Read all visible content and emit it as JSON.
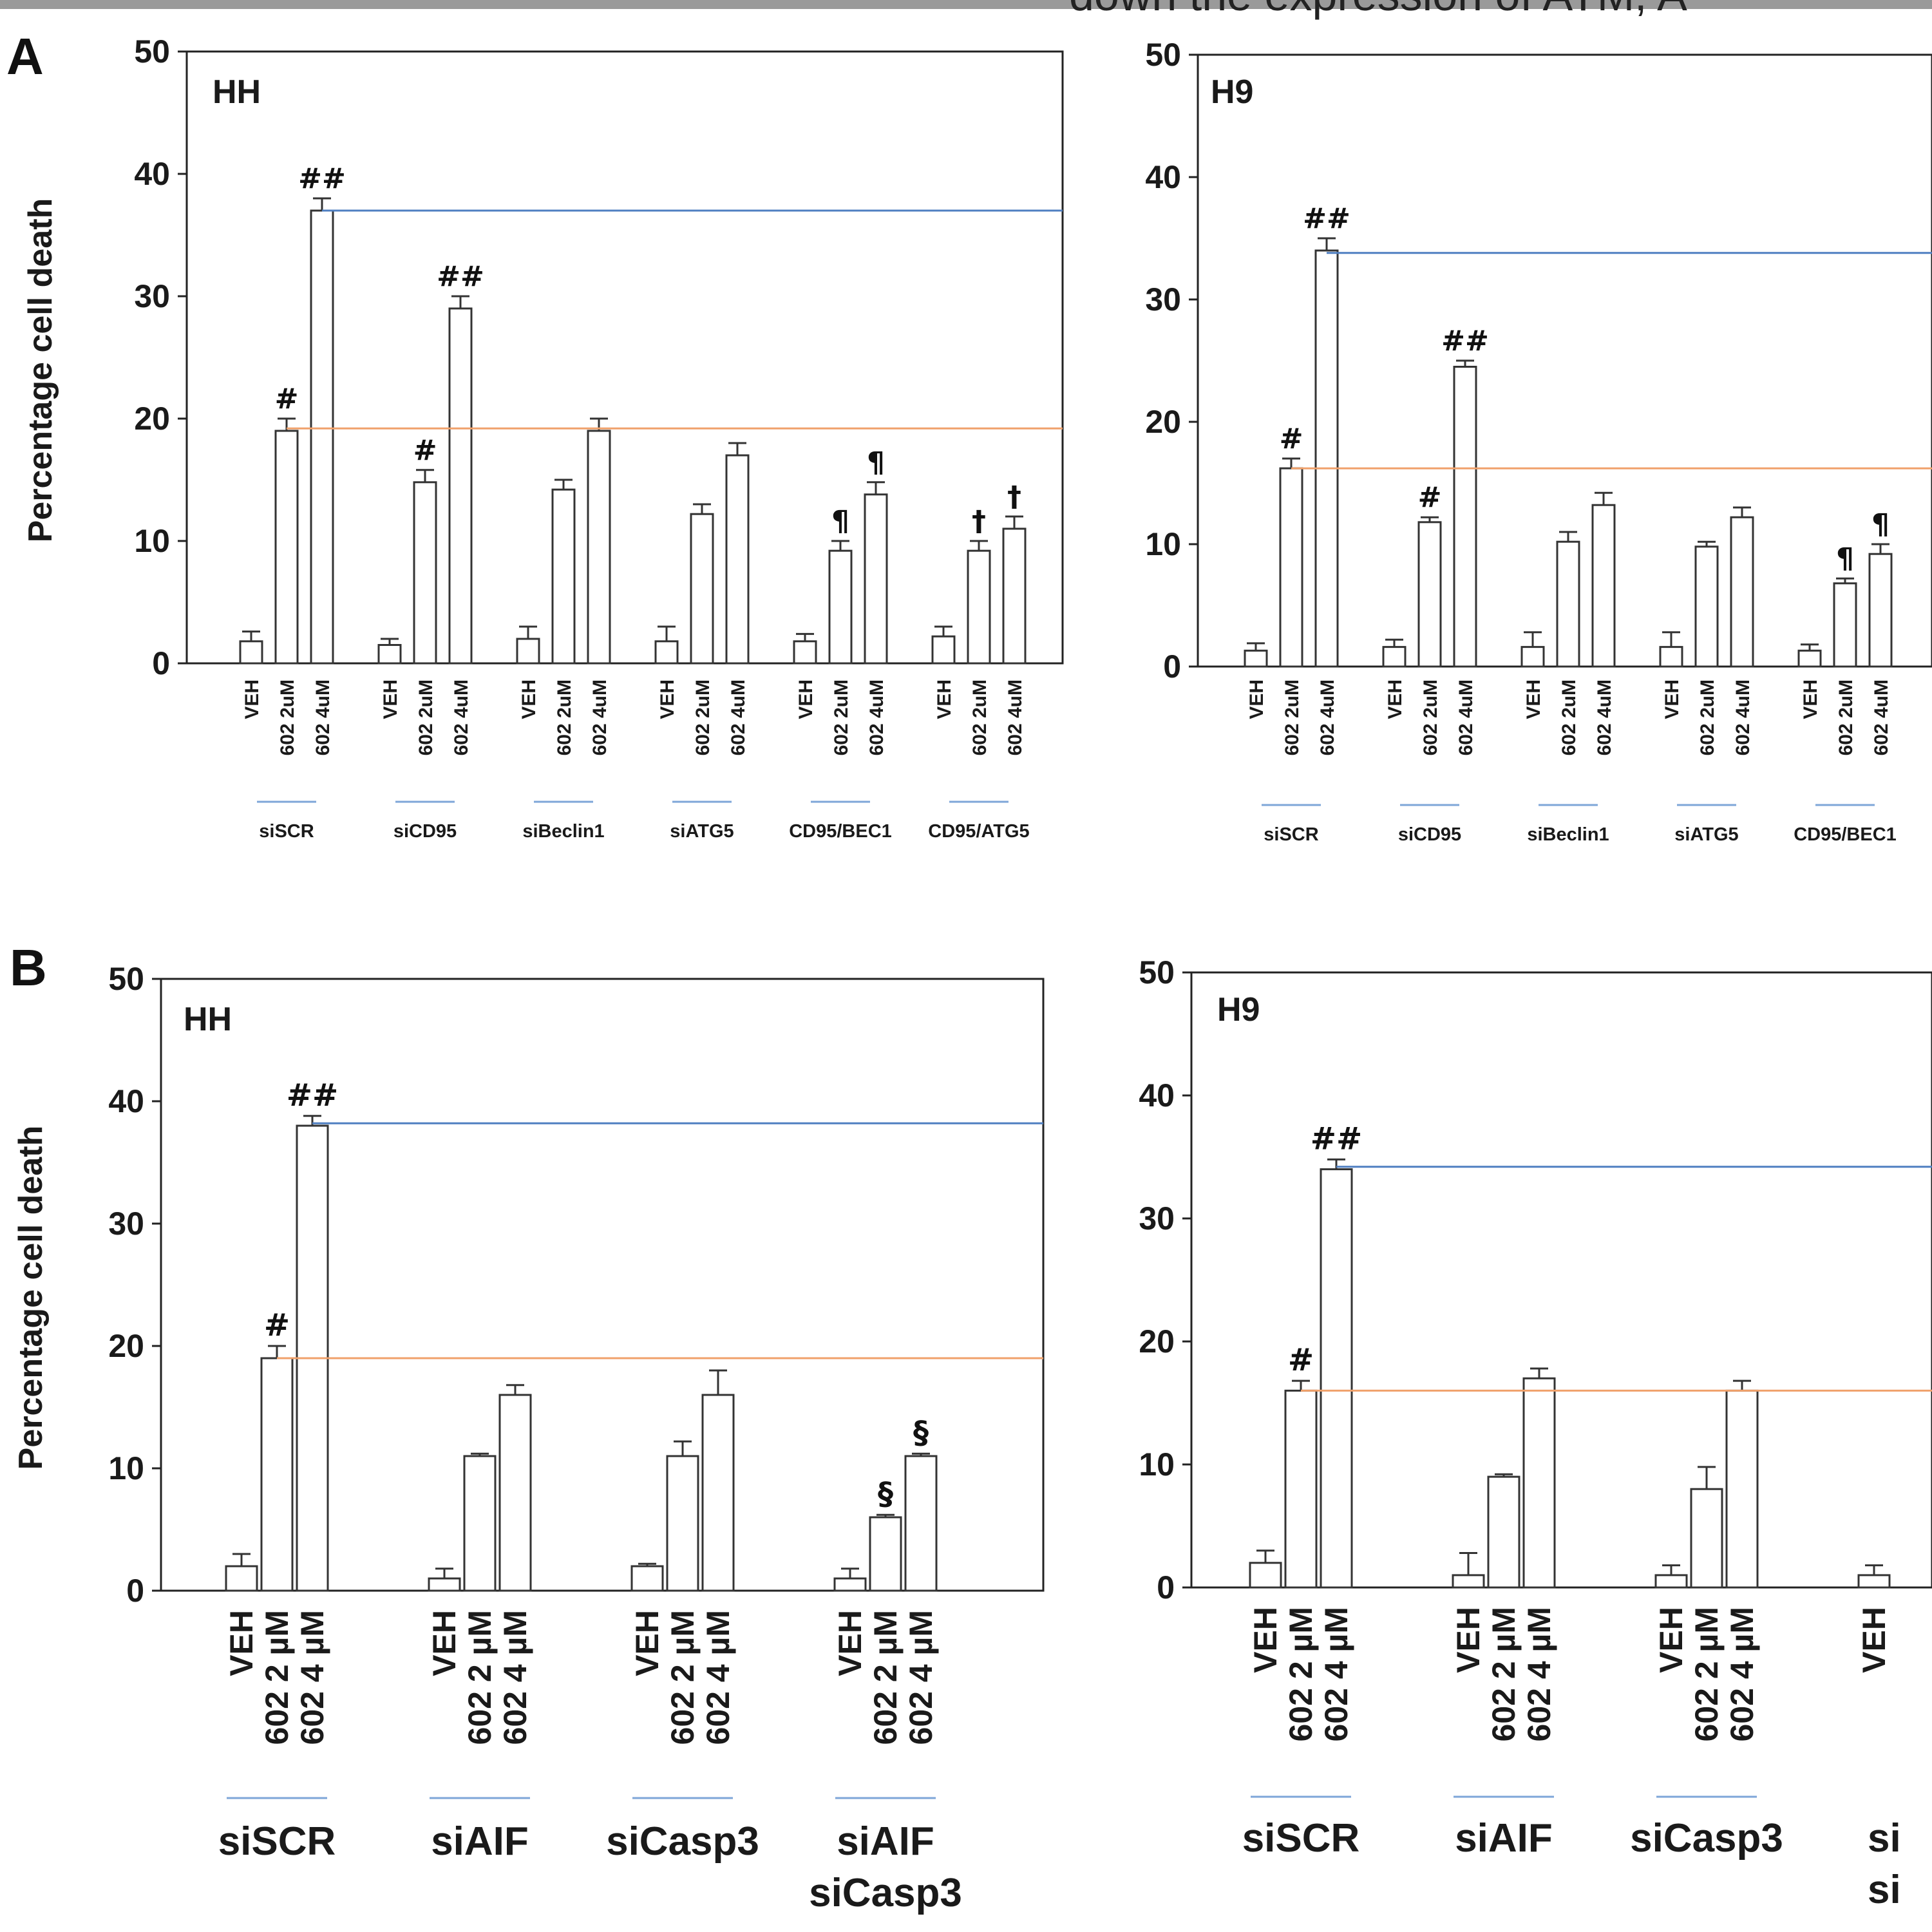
{
  "header_fragment": "down the expression of ATM, A",
  "colors": {
    "ref_high": "#4f7fc1",
    "ref_low": "#f0a16b",
    "underline": "#7ea6d8"
  },
  "chart_data": [
    {
      "panel": "A",
      "cell_line": "HH",
      "type": "bar",
      "ylabel": "Percentage cell death",
      "ylim": [
        0,
        50
      ],
      "yticks": [
        0,
        10,
        20,
        30,
        40,
        50
      ],
      "groups": [
        {
          "name": "siSCR",
          "conditions": [
            "VEH",
            "602 2uM",
            "602 4uM"
          ],
          "values": [
            1.8,
            19,
            37
          ],
          "errors": [
            0.8,
            1,
            1
          ],
          "annotations": [
            "",
            "#",
            "##"
          ]
        },
        {
          "name": "siCD95",
          "conditions": [
            "VEH",
            "602 2uM",
            "602 4uM"
          ],
          "values": [
            1.5,
            14.8,
            29
          ],
          "errors": [
            0.5,
            1,
            1
          ],
          "annotations": [
            "",
            "#",
            "##"
          ]
        },
        {
          "name": "siBeclin1",
          "conditions": [
            "VEH",
            "602 2uM",
            "602 4uM"
          ],
          "values": [
            2,
            14.2,
            19
          ],
          "errors": [
            1,
            0.8,
            1
          ],
          "annotations": [
            "",
            "",
            ""
          ]
        },
        {
          "name": "siATG5",
          "conditions": [
            "VEH",
            "602 2uM",
            "602 4uM"
          ],
          "values": [
            1.8,
            12.2,
            17
          ],
          "errors": [
            1.2,
            0.8,
            1
          ],
          "annotations": [
            "",
            "",
            ""
          ]
        },
        {
          "name": "CD95/BEC1",
          "conditions": [
            "VEH",
            "602 2uM",
            "602 4uM"
          ],
          "values": [
            1.8,
            9.2,
            13.8
          ],
          "errors": [
            0.6,
            0.8,
            1
          ],
          "annotations": [
            "",
            "¶",
            "¶"
          ]
        },
        {
          "name": "CD95/ATG5",
          "conditions": [
            "VEH",
            "602 2uM",
            "602 4uM"
          ],
          "values": [
            2.2,
            9.2,
            11
          ],
          "errors": [
            0.8,
            0.8,
            1
          ],
          "annotations": [
            "",
            "†",
            "†"
          ]
        }
      ],
      "reference_lines": [
        37,
        19.2
      ]
    },
    {
      "panel": "",
      "cell_line": "H9",
      "type": "bar",
      "ylabel": "",
      "ylim": [
        0,
        50
      ],
      "yticks": [
        0,
        10,
        20,
        30,
        40,
        50
      ],
      "groups": [
        {
          "name": "siSCR",
          "conditions": [
            "VEH",
            "602 2uM",
            "602 4uM"
          ],
          "values": [
            1.3,
            16.2,
            34
          ],
          "errors": [
            0.6,
            0.8,
            1
          ],
          "annotations": [
            "",
            "#",
            "##"
          ]
        },
        {
          "name": "siCD95",
          "conditions": [
            "VEH",
            "602 2uM",
            "602 4uM"
          ],
          "values": [
            1.6,
            11.8,
            24.5
          ],
          "errors": [
            0.6,
            0.4,
            0.5
          ],
          "annotations": [
            "",
            "#",
            "##"
          ]
        },
        {
          "name": "siBeclin1",
          "conditions": [
            "VEH",
            "602 2uM",
            "602 4uM"
          ],
          "values": [
            1.6,
            10.2,
            13.2
          ],
          "errors": [
            1.2,
            0.8,
            1
          ],
          "annotations": [
            "",
            "",
            ""
          ]
        },
        {
          "name": "siATG5",
          "conditions": [
            "VEH",
            "602 2uM",
            "602 4uM"
          ],
          "values": [
            1.6,
            9.8,
            12.2
          ],
          "errors": [
            1.2,
            0.4,
            0.8
          ],
          "annotations": [
            "",
            "",
            ""
          ]
        },
        {
          "name": "CD95/BEC1",
          "conditions": [
            "VEH",
            "602 2uM",
            "602 4uM"
          ],
          "values": [
            1.3,
            6.8,
            9.2
          ],
          "errors": [
            0.5,
            0.4,
            0.8
          ],
          "annotations": [
            "",
            "¶",
            "¶"
          ]
        }
      ],
      "reference_lines": [
        33.8,
        16.2
      ]
    },
    {
      "panel": "B",
      "cell_line": "HH",
      "type": "bar",
      "ylabel": "Percentage cell death",
      "ylim": [
        0,
        50
      ],
      "yticks": [
        0,
        10,
        20,
        30,
        40,
        50
      ],
      "groups": [
        {
          "name": "siSCR",
          "conditions": [
            "VEH",
            "602 2 µM",
            "602 4 µM"
          ],
          "values": [
            2,
            19,
            38
          ],
          "errors": [
            1,
            1,
            0.8
          ],
          "annotations": [
            "",
            "#",
            "##"
          ]
        },
        {
          "name": "siAIF",
          "conditions": [
            "VEH",
            "602 2 µM",
            "602 4 µM"
          ],
          "values": [
            1,
            11,
            16
          ],
          "errors": [
            0.8,
            0.2,
            0.8
          ],
          "annotations": [
            "",
            "",
            ""
          ]
        },
        {
          "name": "siCasp3",
          "conditions": [
            "VEH",
            "602 2 µM",
            "602 4 µM"
          ],
          "values": [
            2,
            11,
            16
          ],
          "errors": [
            0.2,
            1.2,
            2
          ],
          "annotations": [
            "",
            "",
            ""
          ]
        },
        {
          "name": "siAIF\nsiCasp3",
          "conditions": [
            "VEH",
            "602 2 µM",
            "602 4 µM"
          ],
          "values": [
            1,
            6,
            11
          ],
          "errors": [
            0.8,
            0.2,
            0.2
          ],
          "annotations": [
            "",
            "§",
            "§"
          ]
        }
      ],
      "reference_lines": [
        38.2,
        19
      ]
    },
    {
      "panel": "",
      "cell_line": "H9",
      "type": "bar",
      "ylabel": "",
      "ylim": [
        0,
        50
      ],
      "yticks": [
        0,
        10,
        20,
        30,
        40,
        50
      ],
      "groups": [
        {
          "name": "siSCR",
          "conditions": [
            "VEH",
            "602 2 µM",
            "602 4 µM"
          ],
          "values": [
            2,
            16,
            34
          ],
          "errors": [
            1,
            0.8,
            0.8
          ],
          "annotations": [
            "",
            "#",
            "##"
          ]
        },
        {
          "name": "siAIF",
          "conditions": [
            "VEH",
            "602 2 µM",
            "602 4 µM"
          ],
          "values": [
            1,
            9,
            17
          ],
          "errors": [
            1.8,
            0.2,
            0.8
          ],
          "annotations": [
            "",
            "",
            ""
          ]
        },
        {
          "name": "siCasp3",
          "conditions": [
            "VEH",
            "602 2 µM",
            "602 4 µM"
          ],
          "values": [
            1,
            8,
            16
          ],
          "errors": [
            0.8,
            1.8,
            0.8
          ],
          "annotations": [
            "",
            "",
            ""
          ]
        },
        {
          "name": "si",
          "conditions": [
            "VEH"
          ],
          "values": [
            1
          ],
          "errors": [
            0.8
          ],
          "annotations": [
            ""
          ],
          "name_line2": "si"
        }
      ],
      "reference_lines": [
        34.2,
        16
      ]
    }
  ]
}
